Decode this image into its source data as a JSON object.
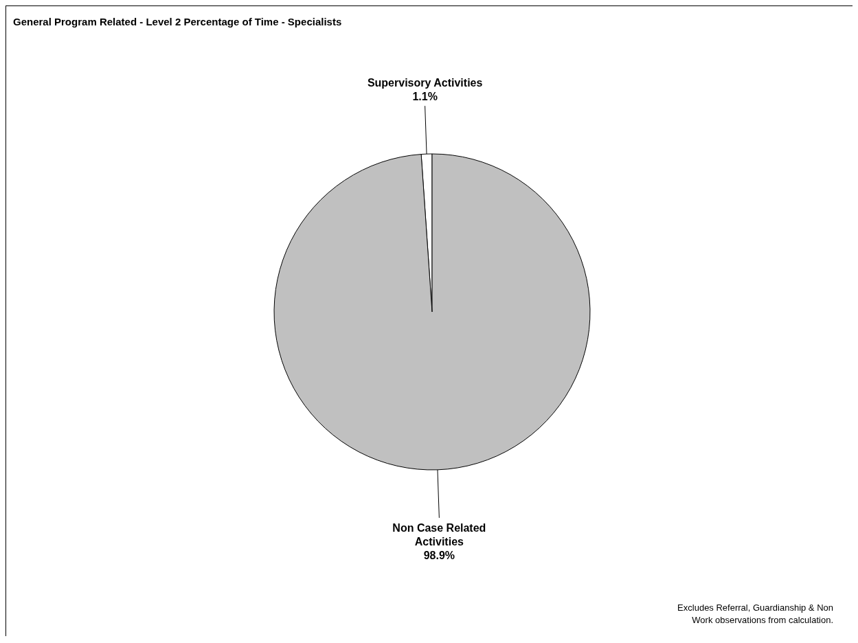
{
  "chart_data": {
    "type": "pie",
    "title": "General Program Related - Level 2 Percentage of Time - Specialists",
    "categories": [
      "Supervisory Activities",
      "Non Case Related Activities"
    ],
    "values": [
      1.1,
      98.9
    ],
    "colors": [
      "#ffffff",
      "#c0c0c0"
    ],
    "value_labels": [
      "1.1%",
      "98.9%"
    ],
    "annotations": [
      "Excludes Referral, Guardianship & Non Work observations from calculation."
    ]
  }
}
